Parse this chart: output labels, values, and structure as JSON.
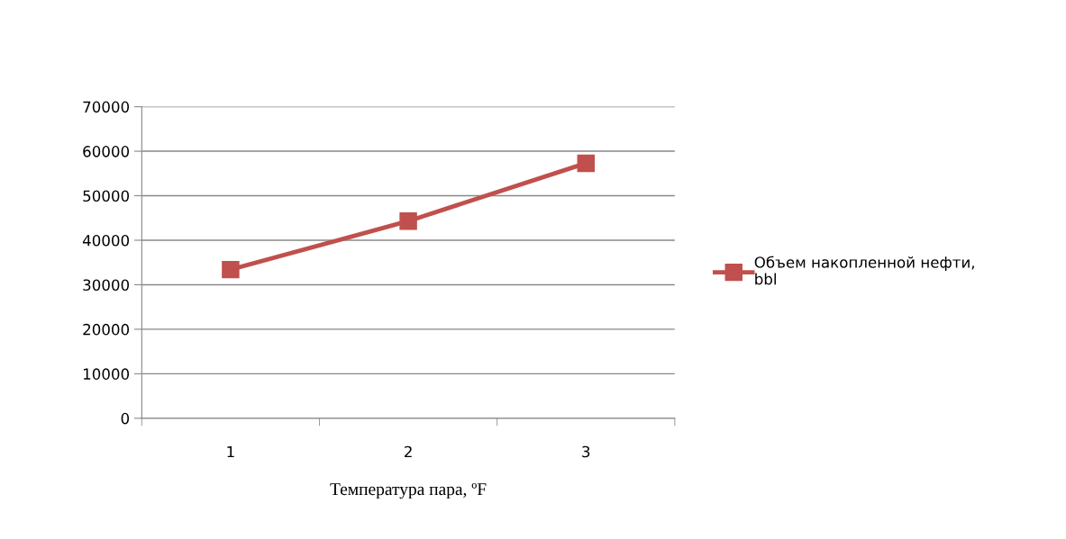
{
  "chart_data": {
    "type": "line",
    "xlabel": "Температура пара, ºF",
    "categories": [
      "1",
      "2",
      "3"
    ],
    "series": [
      {
        "name": "Объем накопленной нефти,\nbbl",
        "color": "#c0504d",
        "values": [
          33400,
          44300,
          57300
        ]
      }
    ],
    "ylim": [
      0,
      70000
    ],
    "yticks": [
      0,
      10000,
      20000,
      30000,
      40000,
      50000,
      60000,
      70000
    ],
    "grid": "y",
    "legend": "right",
    "marker": "square",
    "line_style": "solid"
  }
}
